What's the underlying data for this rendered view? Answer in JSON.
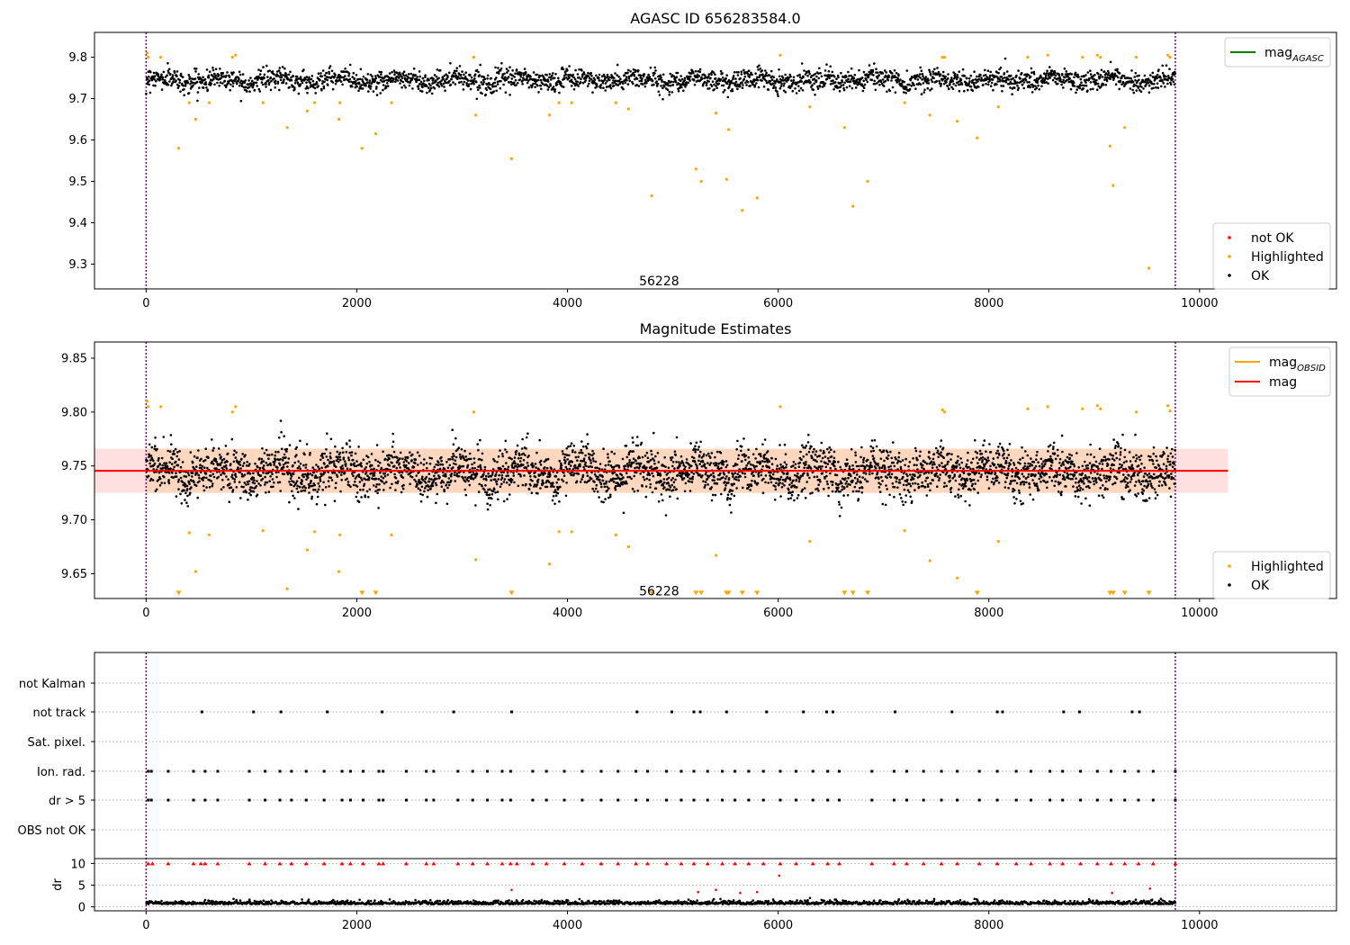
{
  "chart_data": [
    {
      "type": "scatter",
      "title": "AGASC ID 656283584.0",
      "xlim": [
        -490,
        11300
      ],
      "ylim": [
        9.24,
        9.86
      ],
      "xticks": [
        0,
        2000,
        4000,
        6000,
        8000,
        10000
      ],
      "xtick_labels": [
        "0",
        "2000",
        "4000",
        "6000",
        "8000",
        "10000"
      ],
      "yticks": [
        9.3,
        9.4,
        9.5,
        9.6,
        9.7,
        9.8
      ],
      "ytick_labels": [
        "9.3",
        "9.4",
        "9.5",
        "9.6",
        "9.7",
        "9.8"
      ],
      "vlines": [
        0,
        9770
      ],
      "vline_color": "#800080",
      "annotation": {
        "text": "56228",
        "x": 4870,
        "y": 9.26
      },
      "line_legend": [
        {
          "name": "mag",
          "subscript": "AGASC",
          "color": "#008000"
        }
      ],
      "marker_legend": [
        {
          "name": "not OK",
          "color": "#ff0000"
        },
        {
          "name": "Highlighted",
          "color": "#ffa500"
        },
        {
          "name": "OK",
          "color": "#000000"
        }
      ],
      "series": [
        {
          "name": "OK",
          "color": "#000000",
          "kind": "dense",
          "x_range": [
            0,
            9770
          ],
          "center": 9.745,
          "spread": 0.022,
          "count": 2600
        },
        {
          "name": "Highlighted",
          "color": "#ffa500",
          "points": [
            [
              10,
              9.81
            ],
            [
              20,
              9.8
            ],
            [
              140,
              9.8
            ],
            [
              310,
              9.58
            ],
            [
              410,
              9.69
            ],
            [
              470,
              9.65
            ],
            [
              600,
              9.69
            ],
            [
              820,
              9.8
            ],
            [
              850,
              9.805
            ],
            [
              1110,
              9.69
            ],
            [
              1340,
              9.63
            ],
            [
              1530,
              9.67
            ],
            [
              1600,
              9.69
            ],
            [
              1830,
              9.65
            ],
            [
              1840,
              9.69
            ],
            [
              2050,
              9.58
            ],
            [
              2180,
              9.615
            ],
            [
              2330,
              9.69
            ],
            [
              3110,
              9.8
            ],
            [
              3130,
              9.66
            ],
            [
              3470,
              9.555
            ],
            [
              3830,
              9.66
            ],
            [
              3920,
              9.69
            ],
            [
              4040,
              9.69
            ],
            [
              4460,
              9.69
            ],
            [
              4580,
              9.675
            ],
            [
              4800,
              9.465
            ],
            [
              5220,
              9.53
            ],
            [
              5270,
              9.5
            ],
            [
              5410,
              9.665
            ],
            [
              5530,
              9.625
            ],
            [
              5510,
              9.505
            ],
            [
              5660,
              9.43
            ],
            [
              5800,
              9.46
            ],
            [
              6020,
              9.805
            ],
            [
              6300,
              9.68
            ],
            [
              6630,
              9.63
            ],
            [
              6710,
              9.44
            ],
            [
              6850,
              9.5
            ],
            [
              7200,
              9.69
            ],
            [
              7440,
              9.66
            ],
            [
              7560,
              9.8
            ],
            [
              7580,
              9.8
            ],
            [
              7700,
              9.645
            ],
            [
              7890,
              9.605
            ],
            [
              8090,
              9.68
            ],
            [
              8370,
              9.8
            ],
            [
              8560,
              9.805
            ],
            [
              8890,
              9.8
            ],
            [
              9030,
              9.805
            ],
            [
              9060,
              9.8
            ],
            [
              9150,
              9.585
            ],
            [
              9180,
              9.49
            ],
            [
              9290,
              9.63
            ],
            [
              9400,
              9.8
            ],
            [
              9520,
              9.29
            ],
            [
              9700,
              9.805
            ],
            [
              9720,
              9.8
            ]
          ]
        }
      ]
    },
    {
      "type": "scatter",
      "title": "Magnitude Estimates",
      "xlim": [
        -490,
        11300
      ],
      "ylim": [
        9.627,
        9.865
      ],
      "xticks": [
        0,
        2000,
        4000,
        6000,
        8000,
        10000
      ],
      "xtick_labels": [
        "0",
        "2000",
        "4000",
        "6000",
        "8000",
        "10000"
      ],
      "yticks": [
        9.65,
        9.7,
        9.75,
        9.8,
        9.85
      ],
      "ytick_labels": [
        "9.65",
        "9.70",
        "9.75",
        "9.80",
        "9.85"
      ],
      "vlines": [
        0,
        9770
      ],
      "vline_color": "#800080",
      "annotation": {
        "text": "56228",
        "x": 4870,
        "y": 9.634
      },
      "mean_mag": 9.7455,
      "mean_line_color": "#ff0000",
      "mean_band": {
        "low": 9.725,
        "high": 9.766,
        "x_range": [
          -490,
          10270
        ],
        "color": "#ff0000",
        "alpha": 0.12
      },
      "obsid_band": {
        "low": 9.725,
        "high": 9.766,
        "x_range": [
          0,
          9770
        ],
        "color": "#ffa500",
        "alpha": 0.15
      },
      "line_legend": [
        {
          "name": "mag",
          "subscript": "OBSID",
          "color": "#ffa500"
        },
        {
          "name": "mag",
          "subscript": "",
          "color": "#ff0000"
        }
      ],
      "marker_legend": [
        {
          "name": "Highlighted",
          "color": "#ffa500"
        },
        {
          "name": "OK",
          "color": "#000000"
        }
      ],
      "series": [
        {
          "name": "OK",
          "color": "#000000",
          "kind": "dense",
          "x_range": [
            0,
            9770
          ],
          "center": 9.745,
          "spread": 0.02,
          "count": 3600
        },
        {
          "name": "Highlighted",
          "color": "#ffa500",
          "points": [
            [
              10,
              9.81
            ],
            [
              20,
              9.805
            ],
            [
              140,
              9.805
            ],
            [
              410,
              9.688
            ],
            [
              470,
              9.652
            ],
            [
              600,
              9.686
            ],
            [
              820,
              9.8
            ],
            [
              850,
              9.805
            ],
            [
              1110,
              9.69
            ],
            [
              1340,
              9.636
            ],
            [
              1530,
              9.672
            ],
            [
              1600,
              9.689
            ],
            [
              1830,
              9.652
            ],
            [
              1840,
              9.686
            ],
            [
              2330,
              9.686
            ],
            [
              3110,
              9.8
            ],
            [
              3130,
              9.663
            ],
            [
              3830,
              9.659
            ],
            [
              3920,
              9.689
            ],
            [
              4040,
              9.689
            ],
            [
              4460,
              9.686
            ],
            [
              4580,
              9.675
            ],
            [
              5410,
              9.667
            ],
            [
              6020,
              9.805
            ],
            [
              6300,
              9.68
            ],
            [
              7200,
              9.69
            ],
            [
              7440,
              9.662
            ],
            [
              7560,
              9.802
            ],
            [
              7580,
              9.8
            ],
            [
              7700,
              9.646
            ],
            [
              8090,
              9.68
            ],
            [
              8370,
              9.803
            ],
            [
              8560,
              9.805
            ],
            [
              8890,
              9.803
            ],
            [
              9030,
              9.806
            ],
            [
              9060,
              9.803
            ],
            [
              9400,
              9.8
            ],
            [
              9700,
              9.806
            ],
            [
              9720,
              9.801
            ]
          ]
        },
        {
          "name": "Highlighted-out-of-range",
          "color": "#ffa500",
          "marker": "triangle-down",
          "points": [
            [
              310,
              9.63
            ],
            [
              2050,
              9.63
            ],
            [
              2180,
              9.63
            ],
            [
              3470,
              9.63
            ],
            [
              4800,
              9.63
            ],
            [
              5220,
              9.63
            ],
            [
              5270,
              9.63
            ],
            [
              5510,
              9.63
            ],
            [
              5530,
              9.63
            ],
            [
              5660,
              9.63
            ],
            [
              5800,
              9.63
            ],
            [
              6630,
              9.63
            ],
            [
              6710,
              9.63
            ],
            [
              6850,
              9.63
            ],
            [
              7890,
              9.63
            ],
            [
              9150,
              9.63
            ],
            [
              9180,
              9.63
            ],
            [
              9290,
              9.63
            ],
            [
              9520,
              9.63
            ]
          ]
        }
      ]
    },
    {
      "type": "scatter",
      "title": "",
      "xlim": [
        -490,
        11300
      ],
      "xticks": [
        0,
        2000,
        4000,
        6000,
        8000,
        10000
      ],
      "xtick_labels": [
        "0",
        "2000",
        "4000",
        "6000",
        "8000",
        "10000"
      ],
      "vlines": [
        0,
        9770
      ],
      "vline_color": "#800080",
      "flag_categories": [
        "not Kalman",
        "not track",
        "Sat. pixel.",
        "Ion. rad.",
        "dr > 5",
        "OBS not OK"
      ],
      "flag_x": {
        "not Kalman": [],
        "not track": [
          530,
          1020,
          1280,
          1720,
          2240,
          2920,
          3470,
          4660,
          4990,
          5200,
          5260,
          5510,
          5890,
          6240,
          6460,
          6520,
          7110,
          7650,
          8080,
          8130,
          8710,
          8860,
          9360,
          9430
        ],
        "Sat. pixel.": [],
        "Ion. rad.": [
          20,
          50,
          210,
          450,
          560,
          680,
          980,
          1130,
          1270,
          1380,
          1520,
          1690,
          1860,
          1940,
          2060,
          2210,
          2250,
          2470,
          2660,
          2730,
          2960,
          3100,
          3240,
          3380,
          3460,
          3670,
          3800,
          3970,
          4140,
          4320,
          4480,
          4650,
          4760,
          4940,
          5080,
          5200,
          5330,
          5470,
          5590,
          5720,
          5860,
          6020,
          6170,
          6330,
          6470,
          6580,
          6890,
          7100,
          7220,
          7380,
          7550,
          7700,
          7910,
          8080,
          8260,
          8400,
          8580,
          8700,
          8870,
          9030,
          9160,
          9290,
          9420,
          9560,
          9770
        ],
        "dr > 5": [
          20,
          50,
          210,
          450,
          560,
          680,
          980,
          1130,
          1270,
          1380,
          1520,
          1690,
          1860,
          1940,
          2060,
          2210,
          2250,
          2470,
          2660,
          2730,
          2960,
          3100,
          3240,
          3380,
          3460,
          3670,
          3800,
          3970,
          4140,
          4320,
          4480,
          4650,
          4760,
          4940,
          5080,
          5200,
          5330,
          5470,
          5590,
          5720,
          5860,
          6020,
          6170,
          6330,
          6470,
          6580,
          6890,
          7100,
          7220,
          7380,
          7550,
          7700,
          7910,
          8080,
          8260,
          8400,
          8580,
          8700,
          8870,
          9030,
          9160,
          9290,
          9420,
          9560,
          9770
        ],
        "OBS not OK": []
      },
      "dr_ylabel": "dr",
      "dr_ylim": [
        -0.5,
        10.5
      ],
      "dr_yticks": [
        0,
        5,
        10
      ],
      "dr_ytick_labels": [
        "0",
        "5",
        "10"
      ],
      "dr_ok": {
        "color": "#000000",
        "x_range": [
          0,
          9770
        ],
        "center": 0.6,
        "spread": 0.4,
        "count": 1800
      },
      "dr_notok_color": "#ff0000",
      "dr_notok_points": [
        [
          3470,
          3.9
        ],
        [
          5240,
          3.4
        ],
        [
          5410,
          3.9
        ],
        [
          5640,
          3.2
        ],
        [
          5800,
          3.4
        ],
        [
          6010,
          7.2
        ],
        [
          9170,
          3.2
        ],
        [
          9530,
          4.2
        ]
      ],
      "dr_clipped_x": [
        20,
        60,
        210,
        450,
        520,
        560,
        680,
        980,
        1130,
        1270,
        1380,
        1520,
        1690,
        1860,
        1940,
        2060,
        2210,
        2250,
        2470,
        2660,
        2730,
        2960,
        3100,
        3240,
        3380,
        3460,
        3520,
        3670,
        3800,
        3970,
        4140,
        4320,
        4480,
        4650,
        4760,
        4940,
        5080,
        5200,
        5330,
        5470,
        5590,
        5720,
        5860,
        6020,
        6170,
        6330,
        6470,
        6580,
        6890,
        7100,
        7220,
        7380,
        7550,
        7700,
        7910,
        8080,
        8260,
        8400,
        8580,
        8700,
        8870,
        9030,
        9160,
        9290,
        9420,
        9560,
        9770
      ]
    }
  ]
}
